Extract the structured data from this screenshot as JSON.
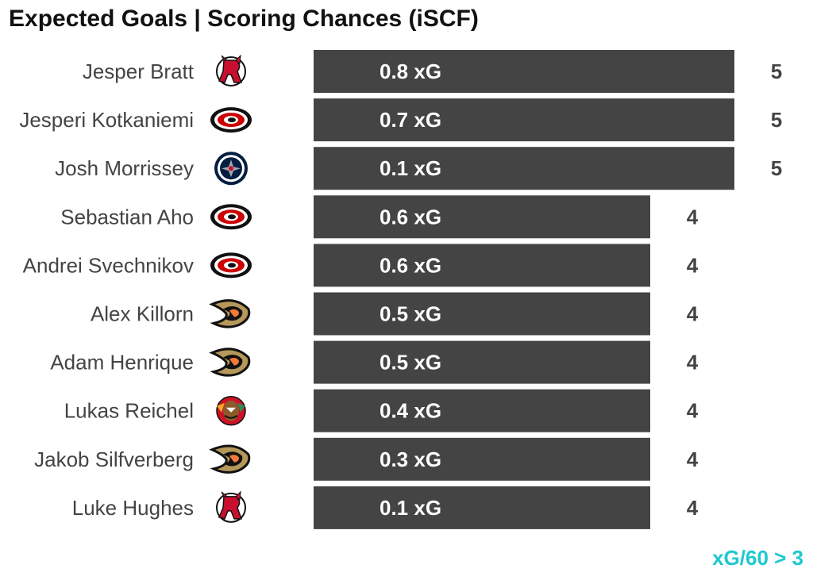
{
  "title": "Expected Goals | Scoring Chances (iSCF)",
  "footnote": "xG/60 > 3",
  "colors": {
    "bar": "#444444",
    "accent": "#1ec8cf",
    "text": "#444444"
  },
  "chart_data": {
    "type": "bar",
    "orientation": "horizontal",
    "title": "Expected Goals | Scoring Chances (iSCF)",
    "xlabel": "",
    "ylabel": "",
    "xlim": [
      0,
      5
    ],
    "grid": false,
    "categories": [
      "Jesper Bratt",
      "Jesperi Kotkaniemi",
      "Josh Morrissey",
      "Sebastian Aho",
      "Andrei Svechnikov",
      "Alex Killorn",
      "Adam Henrique",
      "Lukas Reichel",
      "Jakob Silfverberg",
      "Luke Hughes"
    ],
    "values": [
      5,
      5,
      5,
      4,
      4,
      4,
      4,
      4,
      4,
      4
    ],
    "xg_labels": [
      "0.8 xG",
      "0.7 xG",
      "0.1 xG",
      "0.6 xG",
      "0.6 xG",
      "0.5 xG",
      "0.5 xG",
      "0.4 xG",
      "0.3 xG",
      "0.1 xG"
    ],
    "team_logos": [
      "devils-logo-icon",
      "hurricanes-logo-icon",
      "jets-logo-icon",
      "hurricanes-logo-icon",
      "hurricanes-logo-icon",
      "ducks-logo-icon",
      "ducks-logo-icon",
      "blackhawks-logo-icon",
      "ducks-logo-icon",
      "devils-logo-icon"
    ]
  }
}
